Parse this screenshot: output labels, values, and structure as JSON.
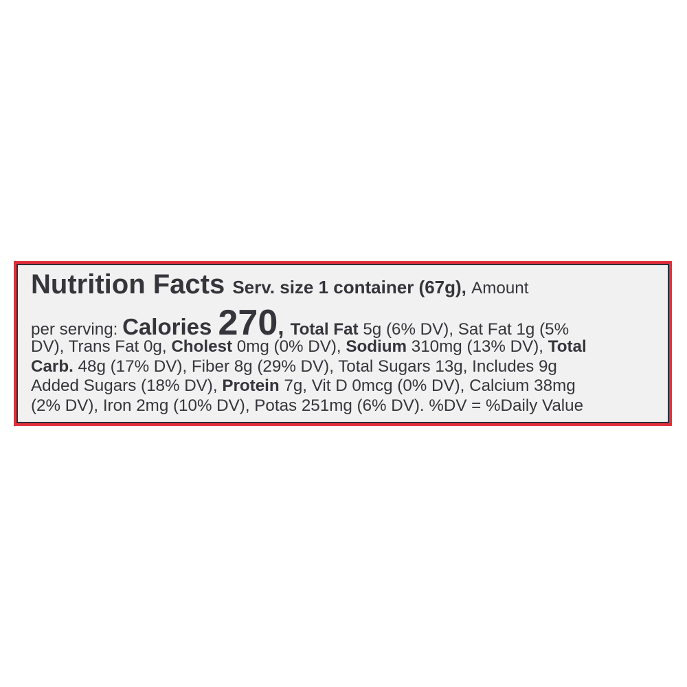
{
  "label": {
    "colors": {
      "outer_border": "#e0303c",
      "inner_border": "#2e2e36",
      "background": "#f1f1f1",
      "text": "#35353b"
    },
    "lines": [
      [
        {
          "text": "Nutrition Facts ",
          "style": "title"
        },
        {
          "text": "Serv. size 1 container (67g)",
          "style": "med"
        },
        {
          "text": ", ",
          "style": "med"
        },
        {
          "text": "Amount",
          "style": "r"
        }
      ],
      [
        {
          "text": "per serving: ",
          "style": "r"
        },
        {
          "text": "Calories ",
          "style": "big"
        },
        {
          "text": "270",
          "style": "huge"
        },
        {
          "text": ", ",
          "style": "big"
        },
        {
          "text": "Total Fat",
          "style": "b"
        },
        {
          "text": " 5g (6% DV), Sat Fat 1g (5%",
          "style": "r"
        }
      ],
      [
        {
          "text": "DV), Trans Fat 0g, ",
          "style": "r"
        },
        {
          "text": "Cholest",
          "style": "b"
        },
        {
          "text": " 0mg (0% DV), ",
          "style": "r"
        },
        {
          "text": "Sodium",
          "style": "b"
        },
        {
          "text": " 310mg (13% DV), ",
          "style": "r"
        },
        {
          "text": "Total",
          "style": "b"
        }
      ],
      [
        {
          "text": "Carb.",
          "style": "b"
        },
        {
          "text": " 48g (17% DV), Fiber 8g (29% DV), Total Sugars 13g, Includes 9g",
          "style": "r"
        }
      ],
      [
        {
          "text": "Added Sugars (18% DV), ",
          "style": "r"
        },
        {
          "text": "Protein",
          "style": "b"
        },
        {
          "text": " 7g, Vit D 0mcg (0% DV), Calcium 38mg",
          "style": "r"
        }
      ],
      [
        {
          "text": "(2% DV), Iron 2mg (10% DV), Potas 251mg (6% DV). %DV = %Daily Value",
          "style": "r"
        }
      ]
    ]
  }
}
